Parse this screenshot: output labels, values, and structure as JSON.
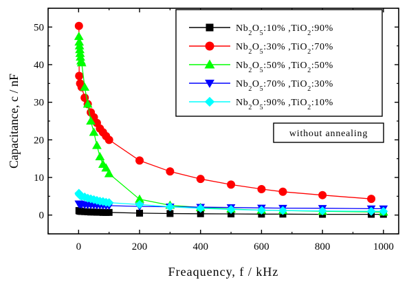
{
  "chart_data": {
    "type": "line",
    "title": "",
    "xlabel": "Freaquency, f / kHz",
    "ylabel": "Capacitance, c / nF",
    "xlim": [
      -100,
      1050
    ],
    "ylim": [
      -5,
      55
    ],
    "x_ticks": [
      0,
      200,
      400,
      600,
      800,
      1000
    ],
    "y_ticks": [
      0,
      10,
      20,
      30,
      40,
      50
    ],
    "grid": false,
    "legend_position": "top-right",
    "annotation": "without annealing",
    "series": [
      {
        "name": "Nb2O5:10% ,TiO2:90%",
        "color": "#000000",
        "marker": "square",
        "x": [
          1,
          2,
          5,
          10,
          20,
          30,
          40,
          50,
          60,
          70,
          80,
          90,
          100,
          200,
          300,
          400,
          500,
          600,
          670,
          800,
          960,
          1000
        ],
        "y": [
          1.2,
          1.1,
          1.0,
          0.95,
          0.9,
          0.85,
          0.8,
          0.8,
          0.75,
          0.75,
          0.7,
          0.7,
          0.7,
          0.5,
          0.4,
          0.35,
          0.3,
          0.25,
          0.25,
          0.2,
          0.2,
          0.2
        ]
      },
      {
        "name": "Nb2O5:30% ,TiO2:70%",
        "color": "#ff0000",
        "marker": "circle",
        "x": [
          1,
          2,
          5,
          10,
          20,
          30,
          40,
          50,
          60,
          70,
          80,
          90,
          100,
          200,
          300,
          400,
          500,
          600,
          670,
          800,
          960
        ],
        "y": [
          50.3,
          37,
          35,
          34,
          31.2,
          29.5,
          27.3,
          26,
          24.5,
          23,
          22,
          21,
          20,
          14.5,
          11.6,
          9.6,
          8.1,
          6.9,
          6.2,
          5.3,
          4.3
        ]
      },
      {
        "name": "Nb2O5:50% ,TiO2:50%",
        "color": "#00ff00",
        "marker": "triangle-up",
        "x": [
          1,
          2,
          3,
          4,
          5,
          6,
          8,
          10,
          20,
          30,
          40,
          50,
          60,
          70,
          80,
          90,
          100,
          200,
          300,
          400,
          500,
          600,
          670,
          800,
          1000
        ],
        "y": [
          47.5,
          46,
          45,
          44,
          43,
          42,
          41,
          40.5,
          34,
          29.5,
          25,
          22,
          18.5,
          15.5,
          13.5,
          12.5,
          11,
          4.2,
          2.6,
          2.0,
          1.6,
          1.3,
          1.2,
          1.0,
          0.8
        ]
      },
      {
        "name": "Nb2O5:70% ,TiO2:30%",
        "color": "#0000ff",
        "marker": "triangle-down",
        "x": [
          1,
          2,
          5,
          10,
          20,
          30,
          40,
          50,
          60,
          70,
          80,
          90,
          100,
          200,
          300,
          400,
          500,
          600,
          670,
          800,
          960,
          1000
        ],
        "y": [
          3.0,
          3.0,
          2.9,
          2.8,
          2.75,
          2.7,
          2.7,
          2.65,
          2.6,
          2.6,
          2.55,
          2.5,
          2.5,
          2.3,
          2.2,
          2.1,
          2.0,
          1.9,
          1.85,
          1.8,
          1.7,
          1.7
        ]
      },
      {
        "name": "Nb2O5:90% ,TiO2:10%",
        "color": "#00ffff",
        "marker": "diamond",
        "x": [
          1,
          2,
          5,
          10,
          20,
          30,
          40,
          50,
          60,
          70,
          80,
          90,
          100,
          200,
          300,
          400,
          500,
          600,
          670,
          800,
          960,
          1000
        ],
        "y": [
          5.8,
          5.5,
          5.2,
          5.0,
          4.8,
          4.5,
          4.3,
          4.1,
          3.9,
          3.7,
          3.6,
          3.4,
          3.3,
          2.8,
          2.2,
          1.8,
          1.5,
          1.3,
          1.2,
          1.1,
          1.0,
          1.0
        ]
      }
    ]
  }
}
